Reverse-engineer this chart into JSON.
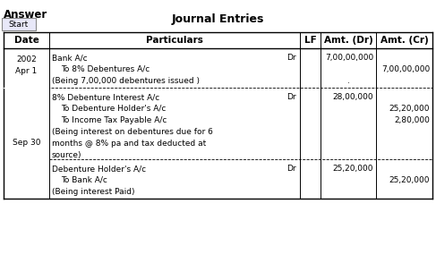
{
  "title": "Journal Entries",
  "headers": [
    "Date",
    "Particulars",
    "LF",
    "Amt. (Dr)",
    "Amt. (Cr)"
  ],
  "answer_label": "Answer",
  "start_label": "Start",
  "rows": [
    {
      "date_lines": [
        "2002",
        "Apr 1"
      ],
      "entries": [
        {
          "particulars_lines": [
            "Bank A/c"
          ],
          "suffix": "Dr",
          "amt_dr": "7,00,00,000",
          "amt_cr": ""
        },
        {
          "particulars_lines": [
            "  To 8% Debentures A/c"
          ],
          "suffix": "",
          "amt_dr": "",
          "amt_cr": "7,00,00,000"
        },
        {
          "particulars_lines": [
            "(Being 7,00,000 debentures issued )"
          ],
          "suffix": "",
          "amt_dr": ".",
          "amt_cr": ""
        }
      ]
    },
    {
      "date_lines": [
        "Sep 30"
      ],
      "entries": [
        {
          "particulars_lines": [
            "8% Debenture Interest A/c"
          ],
          "suffix": "Dr",
          "amt_dr": "28,00,000",
          "amt_cr": ""
        },
        {
          "particulars_lines": [
            "  To Debenture Holder's A/c"
          ],
          "suffix": "",
          "amt_dr": "",
          "amt_cr": "25,20,000"
        },
        {
          "particulars_lines": [
            "  To Income Tax Payable A/c"
          ],
          "suffix": "",
          "amt_dr": "",
          "amt_cr": "2,80,000"
        },
        {
          "particulars_lines": [
            "(Being interest on debentures due for 6",
            "months @ 8% pa and tax deducted at",
            "source)"
          ],
          "suffix": "",
          "amt_dr": "",
          "amt_cr": ""
        }
      ],
      "sub_entries": [
        {
          "particulars_lines": [
            "Debenture Holder's A/c"
          ],
          "suffix": "Dr",
          "amt_dr": "25,20,000",
          "amt_cr": ""
        },
        {
          "particulars_lines": [
            "  To Bank A/c"
          ],
          "suffix": "",
          "amt_dr": "",
          "amt_cr": "25,20,000"
        },
        {
          "particulars_lines": [
            "(Being interest Paid)"
          ],
          "suffix": "",
          "amt_dr": "",
          "amt_cr": ""
        }
      ]
    }
  ],
  "bg_color": "#ffffff",
  "text_color": "#000000",
  "font_size": 6.5,
  "header_font_size": 7.5,
  "title_font_size": 9.0
}
